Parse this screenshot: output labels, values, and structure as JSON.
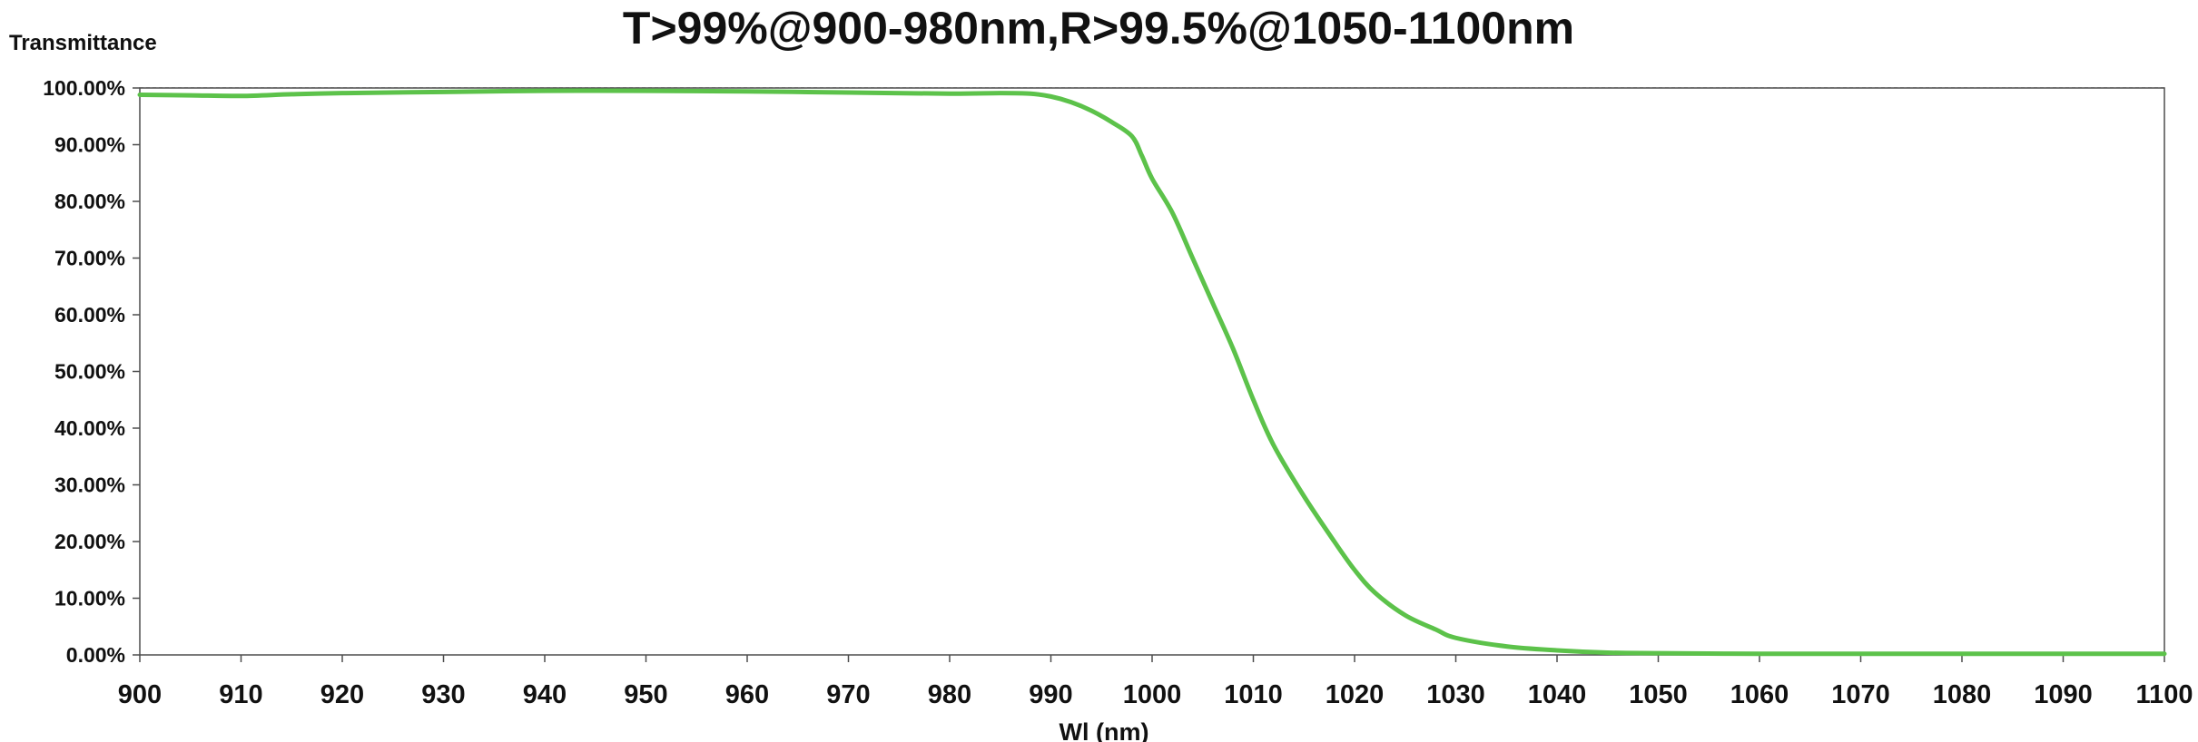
{
  "colors": {
    "series": "#5cc24a",
    "grid": "#1a1a1a",
    "axis": "#4d4d4d",
    "text": "#111111",
    "background": "#ffffff"
  },
  "chart_data": {
    "type": "line",
    "title": "T>99%@900-980nm,R>99.5%@1050-1100nm",
    "ylabel": "Transmittance",
    "xlabel": "Wl (nm)",
    "xlim": [
      900,
      1100
    ],
    "ylim": [
      0,
      100
    ],
    "grid": true,
    "x_ticks": [
      900,
      910,
      920,
      930,
      940,
      950,
      960,
      970,
      980,
      990,
      1000,
      1010,
      1020,
      1030,
      1040,
      1050,
      1060,
      1070,
      1080,
      1090,
      1100
    ],
    "x_tick_labels": [
      "900",
      "910",
      "920",
      "930",
      "940",
      "950",
      "960",
      "970",
      "980",
      "990",
      "1000",
      "1010",
      "1020",
      "1030",
      "1040",
      "1050",
      "1060",
      "1070",
      "1080",
      "1090",
      "1100"
    ],
    "y_ticks": [
      0,
      10,
      20,
      30,
      40,
      50,
      60,
      70,
      80,
      90,
      100
    ],
    "y_tick_labels": [
      "0.00%",
      "10.00%",
      "20.00%",
      "30.00%",
      "40.00%",
      "50.00%",
      "60.00%",
      "70.00%",
      "80.00%",
      "90.00%",
      "100.00%"
    ],
    "series": [
      {
        "x": [
          900,
          905,
          910,
          915,
          920,
          930,
          940,
          950,
          960,
          970,
          980,
          985,
          988,
          990,
          992,
          994,
          996,
          998,
          999,
          1000,
          1002,
          1004,
          1006,
          1008,
          1010,
          1012,
          1015,
          1018,
          1020,
          1022,
          1025,
          1028,
          1030,
          1035,
          1040,
          1045,
          1050,
          1060,
          1070,
          1080,
          1090,
          1100
        ],
        "y": [
          98.8,
          98.7,
          98.6,
          98.9,
          99.1,
          99.3,
          99.5,
          99.5,
          99.4,
          99.2,
          99.0,
          99.1,
          99.0,
          98.5,
          97.5,
          96.0,
          94.0,
          91.5,
          88.0,
          84.0,
          78.0,
          70.0,
          62.0,
          54.0,
          45.0,
          37.0,
          28.0,
          20.0,
          15.0,
          11.0,
          7.0,
          4.5,
          3.0,
          1.5,
          0.8,
          0.4,
          0.3,
          0.2,
          0.2,
          0.2,
          0.2,
          0.2
        ]
      }
    ]
  }
}
